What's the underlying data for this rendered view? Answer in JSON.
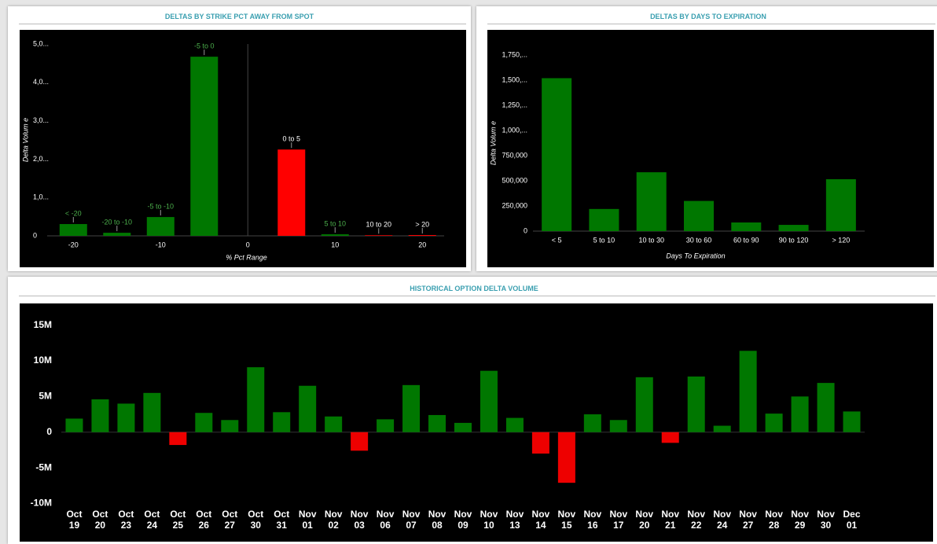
{
  "chart_data": [
    {
      "type": "bar",
      "title": "DELTAS BY STRIKE PCT AWAY FROM SPOT",
      "x_label": "% Pct Range",
      "y_label": "Delta Volum e",
      "x": [
        -20,
        -15,
        -10,
        -5,
        5,
        10,
        15,
        20
      ],
      "values": [
        307,
        80,
        490,
        4670,
        2250,
        40,
        15,
        20
      ],
      "bar_labels": [
        "< -20",
        "-20 to -10",
        "-5 to -10",
        "-5 to 0",
        "0 to 5",
        "5 to 10",
        "10 to 20",
        "> 20"
      ],
      "colors": [
        "#007700",
        "#007700",
        "#007700",
        "#007700",
        "#ff0000",
        "#007700",
        "#ff0000",
        "#ff0000"
      ],
      "xlim": [
        -23,
        22.5
      ],
      "xticks": [
        -20,
        -10,
        0,
        10,
        20
      ],
      "ylim": [
        0,
        5000
      ],
      "yticks": [
        0,
        {
          "value": 1000,
          "label": "1,0..."
        },
        {
          "value": 2000,
          "label": "2,0..."
        },
        {
          "value": 3000,
          "label": "3,0..."
        },
        {
          "value": 4000,
          "label": "4,0..."
        },
        {
          "value": 5000,
          "label": "5,0..."
        }
      ]
    },
    {
      "type": "bar",
      "title": "DELTAS BY DAYS TO EXPIRATION",
      "x_label": "Days To Expiration",
      "y_label": "Delta Volum e",
      "categories": [
        "< 5",
        "5 to 10",
        "10 to 30",
        "30 to 60",
        "60 to 90",
        "90 to 120",
        "> 120"
      ],
      "values": [
        1520000,
        220000,
        585000,
        300000,
        86000,
        62000,
        516000
      ],
      "color": "#007700",
      "ylim": [
        0,
        1875000
      ],
      "yticks": [
        0,
        {
          "value": 250000,
          "label": "250,000"
        },
        {
          "value": 500000,
          "label": "500,000"
        },
        {
          "value": 750000,
          "label": "750,000"
        },
        {
          "value": 1000000,
          "label": "1,000,..."
        },
        {
          "value": 1250000,
          "label": "1,250,..."
        },
        {
          "value": 1500000,
          "label": "1,500,..."
        },
        {
          "value": 1750000,
          "label": "1,750,..."
        }
      ]
    },
    {
      "type": "bar",
      "title": "HISTORICAL OPTION DELTA VOLUME",
      "categories": [
        "Oct 19",
        "Oct 20",
        "Oct 23",
        "Oct 24",
        "Oct 25",
        "Oct 26",
        "Oct 27",
        "Oct 30",
        "Oct 31",
        "Nov 01",
        "Nov 02",
        "Nov 03",
        "Nov 06",
        "Nov 07",
        "Nov 08",
        "Nov 09",
        "Nov 10",
        "Nov 13",
        "Nov 14",
        "Nov 15",
        "Nov 16",
        "Nov 17",
        "Nov 20",
        "Nov 21",
        "Nov 22",
        "Nov 24",
        "Nov 27",
        "Nov 28",
        "Nov 29",
        "Nov 30",
        "Dec 01"
      ],
      "values": [
        1900000,
        4600000,
        4000000,
        5500000,
        -1800000,
        2700000,
        1700000,
        9100000,
        2800000,
        6500000,
        2200000,
        -2600000,
        1800000,
        6600000,
        2400000,
        1300000,
        8600000,
        2000000,
        -3000000,
        -7100000,
        2500000,
        1700000,
        7700000,
        -1500000,
        7800000,
        900000,
        11400000,
        2600000,
        5000000,
        6900000,
        2900000
      ],
      "positive_color": "#007700",
      "negative_color": "#ee0000",
      "ylim": [
        -10500000,
        16500000
      ],
      "yticks": [
        {
          "value": -10000000,
          "label": "-10M"
        },
        {
          "value": -5000000,
          "label": "-5M"
        },
        0,
        {
          "value": 5000000,
          "label": "5M"
        },
        {
          "value": 10000000,
          "label": "10M"
        },
        {
          "value": 15000000,
          "label": "15M"
        }
      ]
    }
  ]
}
